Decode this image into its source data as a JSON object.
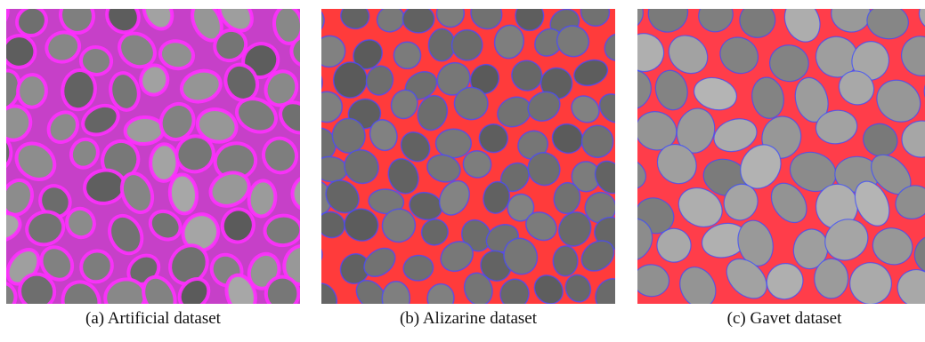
{
  "figures": [
    {
      "caption": "(a)  Artificial dataset",
      "background": "#c640c8",
      "boundary_color": "#ff2fff",
      "cell_light": "#b8b8b8",
      "cell_dark": "#4a4a4a"
    },
    {
      "caption": "(b)  Alizarine dataset",
      "background": "#ff3b3b",
      "boundary_color": "#4a4aff",
      "cell_light": "#8e8e8e",
      "cell_dark": "#505050"
    },
    {
      "caption": "(c)  Gavet dataset",
      "background": "#ff3d4a",
      "boundary_color": "#3c4cff",
      "cell_light": "#c4c4c4",
      "cell_dark": "#6a6a6a"
    }
  ]
}
